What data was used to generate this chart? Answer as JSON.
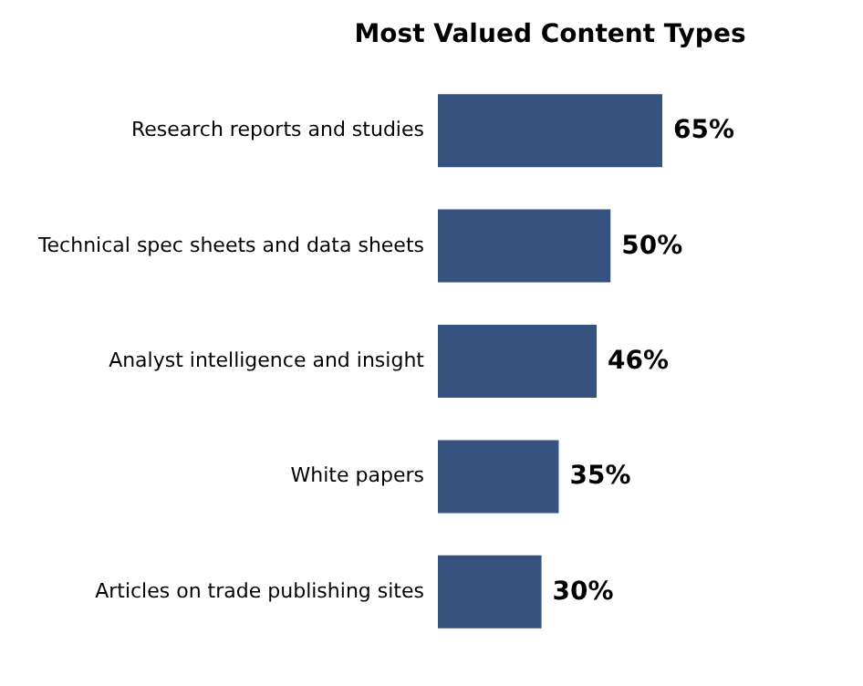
{
  "chart_data": {
    "type": "bar",
    "orientation": "horizontal",
    "title": "Most Valued Content Types",
    "categories": [
      "Research reports and studies",
      "Technical spec sheets and data sheets",
      "Analyst intelligence and insight",
      "White papers",
      "Articles on trade publishing sites"
    ],
    "values": [
      65,
      50,
      46,
      35,
      30
    ],
    "color": "#36537f",
    "value_labels": [
      "65%",
      "50%",
      "46%",
      "35%",
      "30%"
    ],
    "grid": false
  }
}
